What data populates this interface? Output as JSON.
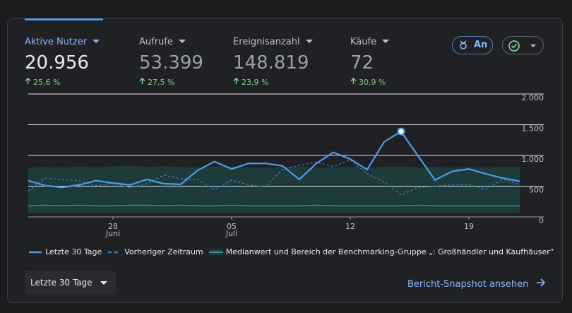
{
  "metrics": [
    {
      "label": "Aktive Nutzer",
      "value": "20.956",
      "change": "25,6 %"
    },
    {
      "label": "Aufrufe",
      "value": "53.399",
      "change": "27,5 %"
    },
    {
      "label": "Ereignisanzahl",
      "value": "148.819",
      "change": "23,9 %"
    },
    {
      "label": "Käufe",
      "value": "72",
      "change": "30,9 %"
    }
  ],
  "badge": "An",
  "chart_data": {
    "type": "line",
    "categories": [
      null,
      null,
      null,
      null,
      null,
      "28",
      null,
      null,
      null,
      null,
      null,
      null,
      "05",
      null,
      null,
      null,
      null,
      null,
      null,
      "12",
      null,
      null,
      null,
      null,
      null,
      null,
      "19",
      null,
      null,
      null
    ],
    "category_sublabels": [
      null,
      null,
      null,
      null,
      null,
      "Juni",
      null,
      null,
      null,
      null,
      null,
      null,
      "Juli",
      null,
      null,
      null,
      null,
      null,
      null,
      null,
      null,
      null,
      null,
      null,
      null,
      null,
      null,
      null,
      null,
      null
    ],
    "series": [
      {
        "name": "Letzte 30 Tage",
        "color": "#4d9be8",
        "dash": false,
        "values": [
          590,
          510,
          480,
          520,
          590,
          550,
          520,
          610,
          540,
          530,
          760,
          900,
          780,
          870,
          870,
          830,
          610,
          870,
          1050,
          940,
          770,
          1220,
          1390,
          990,
          600,
          740,
          780,
          700,
          630,
          580
        ]
      },
      {
        "name": "Vorheriger Zeitraum",
        "color": "#3f7fcf",
        "dash": true,
        "values": [
          420,
          630,
          610,
          590,
          510,
          550,
          480,
          540,
          680,
          620,
          610,
          440,
          600,
          520,
          490,
          770,
          840,
          890,
          820,
          930,
          700,
          570,
          360,
          480,
          500,
          520,
          530,
          450,
          610,
          530
        ]
      }
    ],
    "benchmark": {
      "name": "Medianwert und Bereich der Benchmarking-Gruppe „: Großhändler und Kaufhäuser“",
      "color": "#2f8f8a",
      "fill": "#1e3b3c",
      "upper": [
        800,
        810,
        800,
        820,
        800,
        820,
        830,
        810,
        820,
        810,
        800,
        820,
        820,
        810,
        800,
        810,
        820,
        800,
        810,
        820,
        800,
        810,
        820,
        800,
        810,
        800,
        810,
        800,
        810,
        810
      ],
      "median": [
        180,
        190,
        180,
        190,
        180,
        180,
        190,
        190,
        180,
        190,
        180,
        180,
        190,
        180,
        180,
        180,
        180,
        190,
        180,
        180,
        180,
        180,
        180,
        190,
        180,
        180,
        180,
        180,
        180,
        180
      ],
      "lower": [
        60,
        60,
        60,
        60,
        60,
        60,
        60,
        60,
        60,
        60,
        60,
        60,
        60,
        60,
        60,
        60,
        60,
        60,
        60,
        60,
        60,
        60,
        60,
        60,
        60,
        60,
        60,
        60,
        60,
        60
      ]
    },
    "highlight": 22,
    "ylim": [
      0,
      2000
    ],
    "yticks": [
      0,
      500,
      {
        "value": 1000,
        "label": "1.000"
      },
      {
        "value": 1500,
        "label": "1.500"
      },
      {
        "value": 2000,
        "label": "2.000"
      }
    ],
    "grid": true
  },
  "range_select": "Letzte 30 Tage",
  "link": "Bericht-Snapshot ansehen"
}
